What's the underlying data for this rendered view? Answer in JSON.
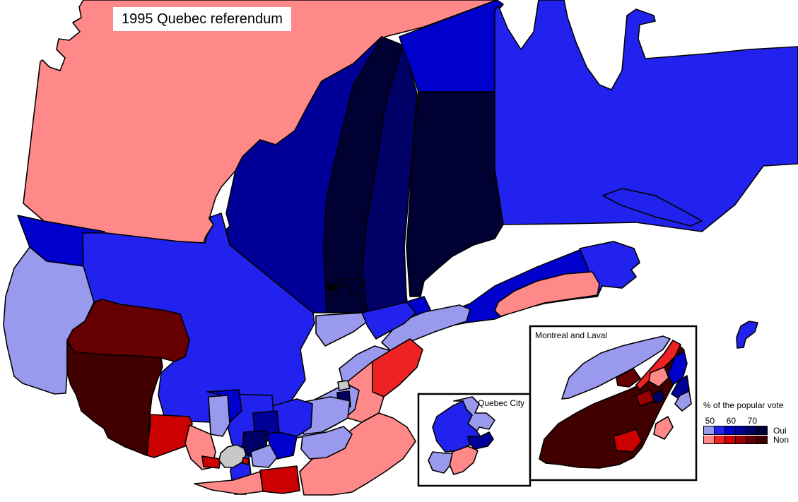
{
  "title": "1995 Quebec referendum",
  "insets": {
    "montreal_label": "Montreal and Laval",
    "quebec_label": "Quebec City"
  },
  "legend": {
    "title": "% of the popular vote",
    "ticks": [
      "50",
      "60",
      "70"
    ],
    "oui_label": "Oui",
    "non_label": "Non"
  },
  "palette": {
    "oui": [
      "#9999ee",
      "#2222ee",
      "#0000cc",
      "#000099",
      "#000066",
      "#000033"
    ],
    "non": [
      "#ff8888",
      "#ee2222",
      "#cc0000",
      "#990000",
      "#660000",
      "#400000"
    ],
    "no_vote": "#c8c8c8",
    "water": "#ffffff",
    "outline": "#000000"
  }
}
